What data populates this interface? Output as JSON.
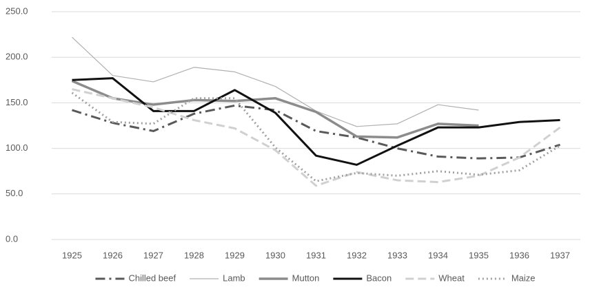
{
  "chart_data": {
    "type": "line",
    "categories": [
      "1925",
      "1926",
      "1927",
      "1928",
      "1929",
      "1930",
      "1931",
      "1932",
      "1933",
      "1934",
      "1935",
      "1936",
      "1937"
    ],
    "ylim": [
      0,
      250
    ],
    "yticks": [
      {
        "value": 0,
        "label": "0.0"
      },
      {
        "value": 50,
        "label": "50.0"
      },
      {
        "value": 100,
        "label": "100.0"
      },
      {
        "value": 150,
        "label": "150.0"
      },
      {
        "value": 200,
        "label": "200.0"
      },
      {
        "value": 250,
        "label": "250.0"
      }
    ],
    "grid": true,
    "legend": "bottom",
    "series": [
      {
        "name": "Chilled beef",
        "color": "#595959",
        "width": 3,
        "dash": "14,6,3,6",
        "values": [
          142,
          128,
          119,
          138,
          147,
          142,
          119,
          112,
          100,
          91,
          89,
          90,
          104
        ]
      },
      {
        "name": "Lamb",
        "color": "#b0b0b0",
        "width": 1.2,
        "dash": "none",
        "values": [
          222,
          180,
          173,
          189,
          184,
          168,
          141,
          124,
          127,
          148,
          142,
          null,
          null
        ]
      },
      {
        "name": "Mutton",
        "color": "#8c8c8c",
        "width": 3.5,
        "dash": "none",
        "values": [
          174,
          155,
          148,
          153,
          152,
          155,
          140,
          113,
          112,
          127,
          125,
          null,
          null
        ]
      },
      {
        "name": "Bacon",
        "color": "#111111",
        "width": 3,
        "dash": "none",
        "values": [
          175,
          177,
          141,
          141,
          164,
          139,
          92,
          82,
          103,
          123,
          123,
          129,
          131
        ]
      },
      {
        "name": "Wheat",
        "color": "#d0d0d0",
        "width": 3,
        "dash": "12,6",
        "values": [
          165,
          155,
          145,
          131,
          122,
          98,
          59,
          74,
          65,
          63,
          70,
          90,
          123
        ]
      },
      {
        "name": "Maize",
        "color": "#a0a0a0",
        "width": 3,
        "dash": "2,4",
        "values": [
          161,
          129,
          127,
          155,
          155,
          101,
          64,
          73,
          70,
          75,
          71,
          76,
          103
        ]
      }
    ]
  }
}
